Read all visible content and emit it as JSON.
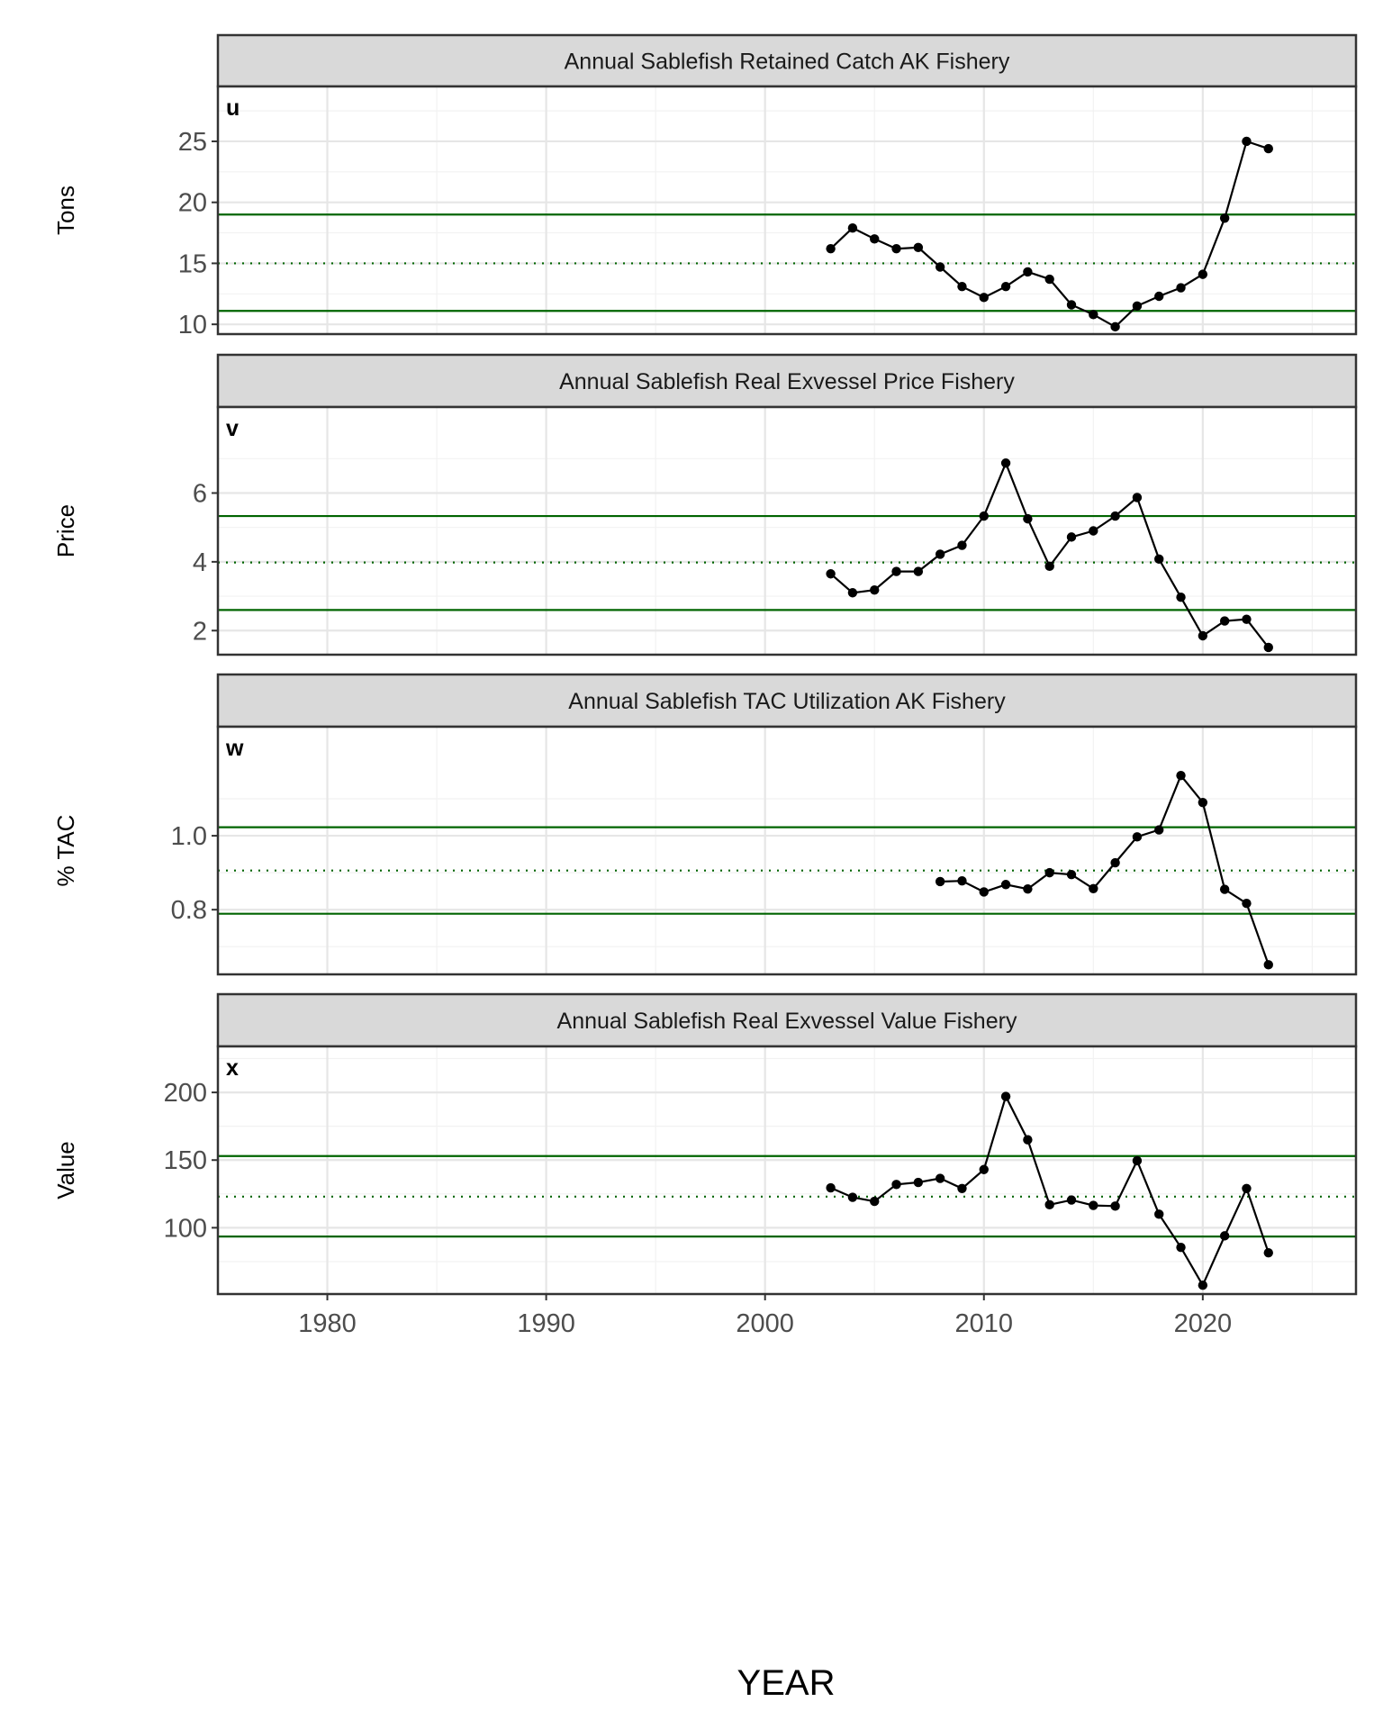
{
  "chart_data": {
    "type": "line",
    "xlabel": "YEAR",
    "x_ticks": [
      1980,
      1990,
      2000,
      2010,
      2020
    ],
    "xlim": [
      1975,
      2027
    ],
    "ref_line_color": "#006400",
    "line_color": "#000000",
    "panels": [
      {
        "tag": "u",
        "title": "Annual Sablefish Retained Catch AK Fishery",
        "ylabel": "Tons",
        "ylim": [
          9.2,
          29.5
        ],
        "y_ticks": [
          10,
          15,
          20,
          25
        ],
        "ref_lines": {
          "upper": 19.0,
          "mean": 15.0,
          "lower": 11.1
        },
        "x": [
          2003,
          2004,
          2005,
          2006,
          2007,
          2008,
          2009,
          2010,
          2011,
          2012,
          2013,
          2014,
          2015,
          2016,
          2017,
          2018,
          2019,
          2020,
          2021,
          2022,
          2023
        ],
        "y": [
          16.2,
          17.9,
          17.0,
          16.2,
          16.3,
          14.7,
          13.1,
          12.2,
          13.1,
          14.3,
          13.7,
          11.6,
          10.8,
          9.8,
          11.5,
          12.3,
          13.0,
          14.1,
          18.7,
          25.0,
          24.4
        ]
      },
      {
        "tag": "v",
        "title": "Annual Sablefish Real Exvessel Price Fishery",
        "ylabel": "Price",
        "ylim": [
          1.3,
          8.5
        ],
        "y_ticks": [
          2,
          4,
          6
        ],
        "ref_lines": {
          "upper": 5.33,
          "mean": 3.98,
          "lower": 2.6
        },
        "x": [
          2003,
          2004,
          2005,
          2006,
          2007,
          2008,
          2009,
          2010,
          2011,
          2012,
          2013,
          2014,
          2015,
          2016,
          2017,
          2018,
          2019,
          2020,
          2021,
          2022,
          2023
        ],
        "y": [
          3.65,
          3.1,
          3.18,
          3.72,
          3.72,
          4.22,
          4.48,
          5.33,
          6.87,
          5.25,
          3.87,
          4.72,
          4.9,
          5.33,
          5.87,
          4.08,
          2.97,
          1.85,
          2.28,
          2.33,
          1.51
        ]
      },
      {
        "tag": "w",
        "title": "Annual Sablefish TAC Utilization AK Fishery",
        "ylabel": "% TAC",
        "ylim": [
          0.625,
          1.295
        ],
        "y_ticks": [
          0.8,
          1.0
        ],
        "y_tick_labels": [
          "0.8",
          "1.0"
        ],
        "ref_lines": {
          "upper": 1.023,
          "mean": 0.906,
          "lower": 0.789
        },
        "x": [
          2008,
          2009,
          2010,
          2011,
          2012,
          2013,
          2014,
          2015,
          2016,
          2017,
          2018,
          2019,
          2020,
          2021,
          2022,
          2023
        ],
        "y": [
          0.876,
          0.878,
          0.848,
          0.868,
          0.856,
          0.9,
          0.895,
          0.857,
          0.927,
          0.997,
          1.016,
          1.163,
          1.09,
          0.855,
          0.817,
          0.651
        ]
      },
      {
        "tag": "x",
        "title": "Annual Sablefish Real Exvessel Value Fishery",
        "ylabel": "Value",
        "ylim": [
          51,
          234
        ],
        "y_ticks": [
          100,
          150,
          200
        ],
        "ref_lines": {
          "upper": 153.0,
          "mean": 123.0,
          "lower": 93.5
        },
        "x": [
          2003,
          2004,
          2005,
          2006,
          2007,
          2008,
          2009,
          2010,
          2011,
          2012,
          2013,
          2014,
          2015,
          2016,
          2017,
          2018,
          2019,
          2020,
          2021,
          2022,
          2023
        ],
        "y": [
          129.5,
          122.5,
          119.5,
          132.0,
          133.5,
          136.5,
          129.0,
          143.0,
          197.0,
          165.0,
          117.0,
          120.5,
          116.5,
          116.0,
          149.5,
          110.0,
          85.5,
          57.5,
          94.0,
          129.0,
          81.5
        ]
      }
    ]
  }
}
